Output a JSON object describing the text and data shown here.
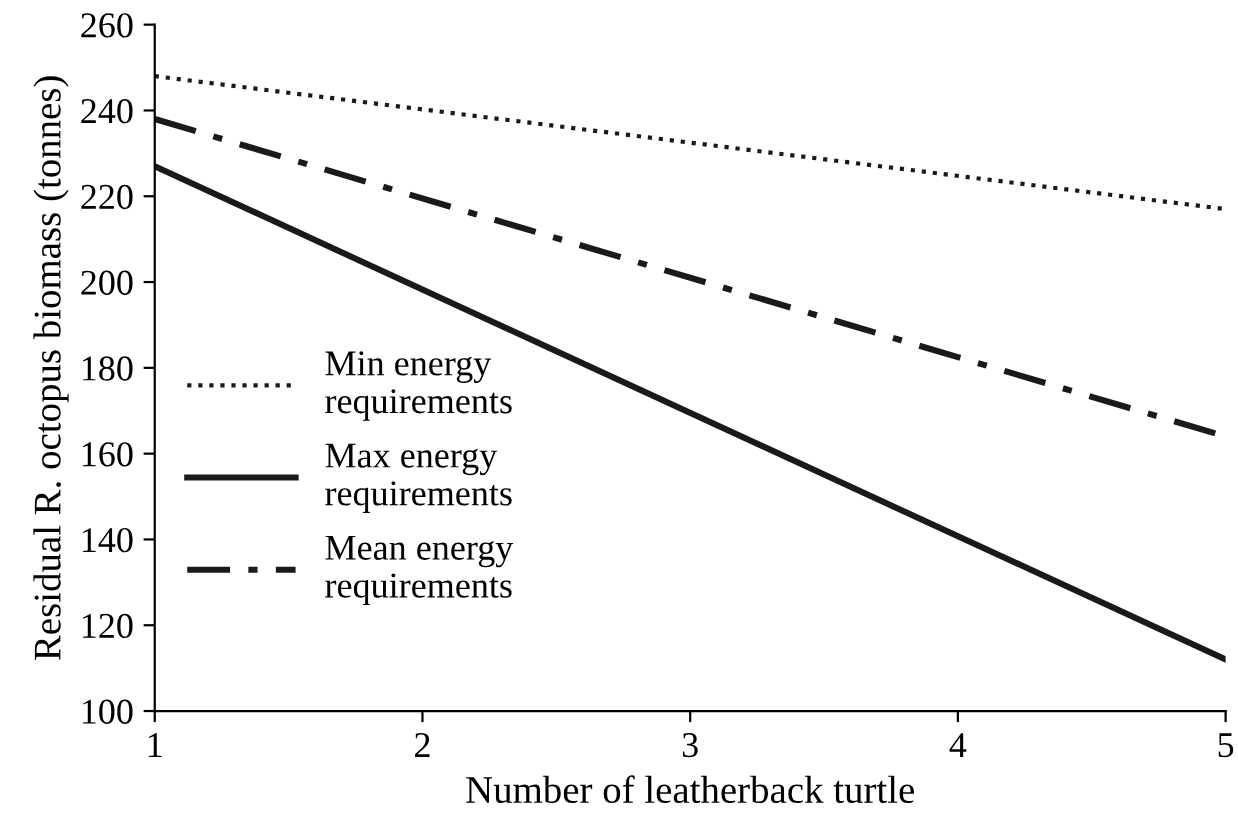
{
  "chart_data": {
    "type": "line",
    "xlabel": "Number of leatherback turtle",
    "ylabel": "Residual R. octopus biomass (tonnes)",
    "x": [
      1,
      5
    ],
    "series": [
      {
        "name": "Min energy\nrequirements",
        "color": "#1a1a1a",
        "values": [
          248,
          217
        ],
        "line_style": "dotted"
      },
      {
        "name": "Max energy\nrequirements",
        "color": "#1a1a1a",
        "values": [
          227,
          112
        ],
        "line_style": "solid"
      },
      {
        "name": "Mean energy\nrequirements",
        "color": "#1a1a1a",
        "values": [
          238,
          164
        ],
        "line_style": "dashdot"
      }
    ],
    "xlim": [
      1,
      5
    ],
    "xticks": [
      1,
      2,
      3,
      4,
      5
    ],
    "ylim": [
      100,
      260
    ],
    "yticks": [
      100,
      120,
      140,
      160,
      180,
      200,
      220,
      240,
      260
    ],
    "grid": false,
    "legend": "left",
    "marker": "none"
  }
}
